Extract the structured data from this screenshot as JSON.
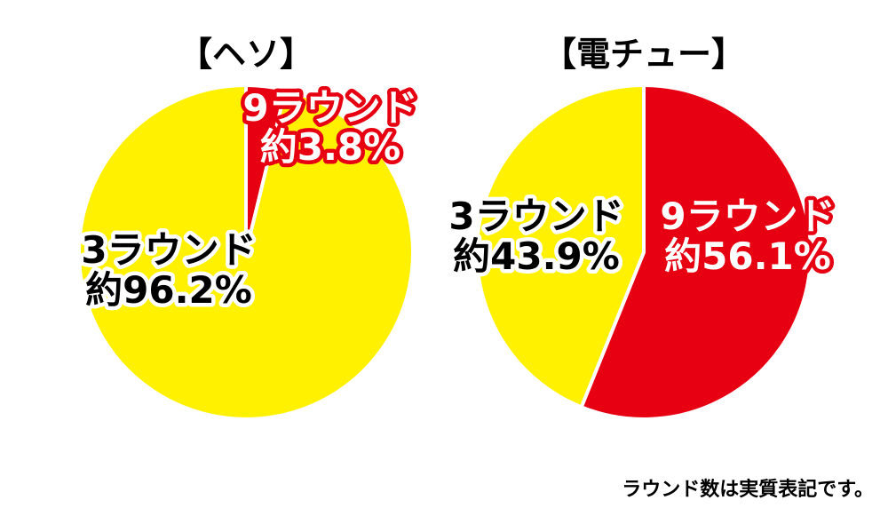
{
  "footnote": "ラウンド数は実質表記です。",
  "chart_data": [
    {
      "type": "pie",
      "title": "【ヘソ】",
      "slices": [
        {
          "label": "9ラウンド",
          "value_text": "約3.8%",
          "value": 3.8,
          "color": "#E60012",
          "text_color": "#ffffff",
          "stroke": "#E60012"
        },
        {
          "label": "3ラウンド",
          "value_text": "約96.2%",
          "value": 96.2,
          "color": "#FFF100",
          "text_color": "#000000",
          "stroke": "#ffffff"
        }
      ]
    },
    {
      "type": "pie",
      "title": "【電チュー】",
      "slices": [
        {
          "label": "9ラウンド",
          "value_text": "約56.1%",
          "value": 56.1,
          "color": "#E60012",
          "text_color": "#ffffff",
          "stroke": "#E60012"
        },
        {
          "label": "3ラウンド",
          "value_text": "約43.9%",
          "value": 43.9,
          "color": "#FFF100",
          "text_color": "#000000",
          "stroke": "#ffffff"
        }
      ]
    }
  ]
}
